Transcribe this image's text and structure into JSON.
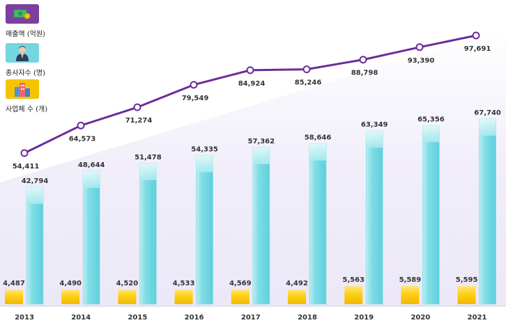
{
  "legend": {
    "sales": {
      "label": "매출액 (억원)",
      "icon": "money-icon",
      "color": "#7b3fa0"
    },
    "employees": {
      "label": "종사자수 (명)",
      "icon": "worker-icon",
      "color": "#74d6e0"
    },
    "companies": {
      "label": "사업체 수 (개)",
      "icon": "buildings-icon",
      "color": "#f5c400"
    }
  },
  "chart_data": {
    "type": "bar",
    "categories": [
      "2013",
      "2014",
      "2015",
      "2016",
      "2017",
      "2018",
      "2019",
      "2020",
      "2021"
    ],
    "series": [
      {
        "name": "사업체 수 (개)",
        "type": "bar",
        "values": [
          4487,
          4490,
          4520,
          4533,
          4569,
          4492,
          5563,
          5589,
          5595
        ],
        "labels": [
          "4,487",
          "4,490",
          "4,520",
          "4,533",
          "4,569",
          "4,492",
          "5,563",
          "5,589",
          "5,595"
        ]
      },
      {
        "name": "종사자수 (명)",
        "type": "bar",
        "values": [
          42794,
          48644,
          51478,
          54335,
          57362,
          58646,
          63349,
          65356,
          67740
        ],
        "labels": [
          "42,794",
          "48,644",
          "51,478",
          "54,335",
          "57,362",
          "58,646",
          "63,349",
          "65,356",
          "67,740"
        ]
      },
      {
        "name": "매출액 (억원)",
        "type": "line",
        "values": [
          54411,
          64573,
          71274,
          79549,
          84924,
          85246,
          88798,
          93390,
          97691
        ],
        "labels": [
          "54,411",
          "64,573",
          "71,274",
          "79,549",
          "84,924",
          "85,246",
          "88,798",
          "93,390",
          "97,691"
        ]
      }
    ],
    "title": "",
    "xlabel": "",
    "ylabel": ""
  }
}
